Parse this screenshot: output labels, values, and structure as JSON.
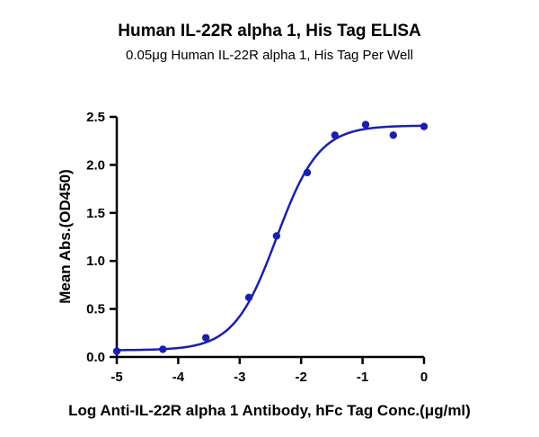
{
  "chart_data": {
    "type": "scatter",
    "title": "Human IL-22R alpha 1, His Tag ELISA",
    "subtitle": "0.05μg Human IL-22R alpha 1, His Tag Per Well",
    "xlabel": "Log Anti-IL-22R alpha 1 Antibody, hFc Tag Conc.(μg/ml)",
    "ylabel": "Mean Abs.(OD450)",
    "xlim": [
      -5,
      0
    ],
    "ylim": [
      0,
      2.5
    ],
    "xticks": [
      "-5",
      "-4",
      "-3",
      "-2",
      "-1",
      "0"
    ],
    "yticks": [
      "0.0",
      "0.5",
      "1.0",
      "1.5",
      "2.0",
      "2.5"
    ],
    "grid": false,
    "legend": "none",
    "series": [
      {
        "points": [
          {
            "x": -5.0,
            "y": 0.06
          },
          {
            "x": -4.25,
            "y": 0.08
          },
          {
            "x": -3.55,
            "y": 0.2
          },
          {
            "x": -2.85,
            "y": 0.62
          },
          {
            "x": -2.4,
            "y": 1.26
          },
          {
            "x": -1.9,
            "y": 1.92
          },
          {
            "x": -1.45,
            "y": 2.31
          },
          {
            "x": -0.95,
            "y": 2.42
          },
          {
            "x": -0.5,
            "y": 2.31
          },
          {
            "x": 0.0,
            "y": 2.4
          }
        ],
        "fit": {
          "model": "4PL",
          "bottom": 0.07,
          "top": 2.41,
          "logEC50": -2.4,
          "hill": 1.25
        }
      }
    ],
    "colors": {
      "series": "#1a1fb0",
      "axis": "#000000"
    }
  }
}
